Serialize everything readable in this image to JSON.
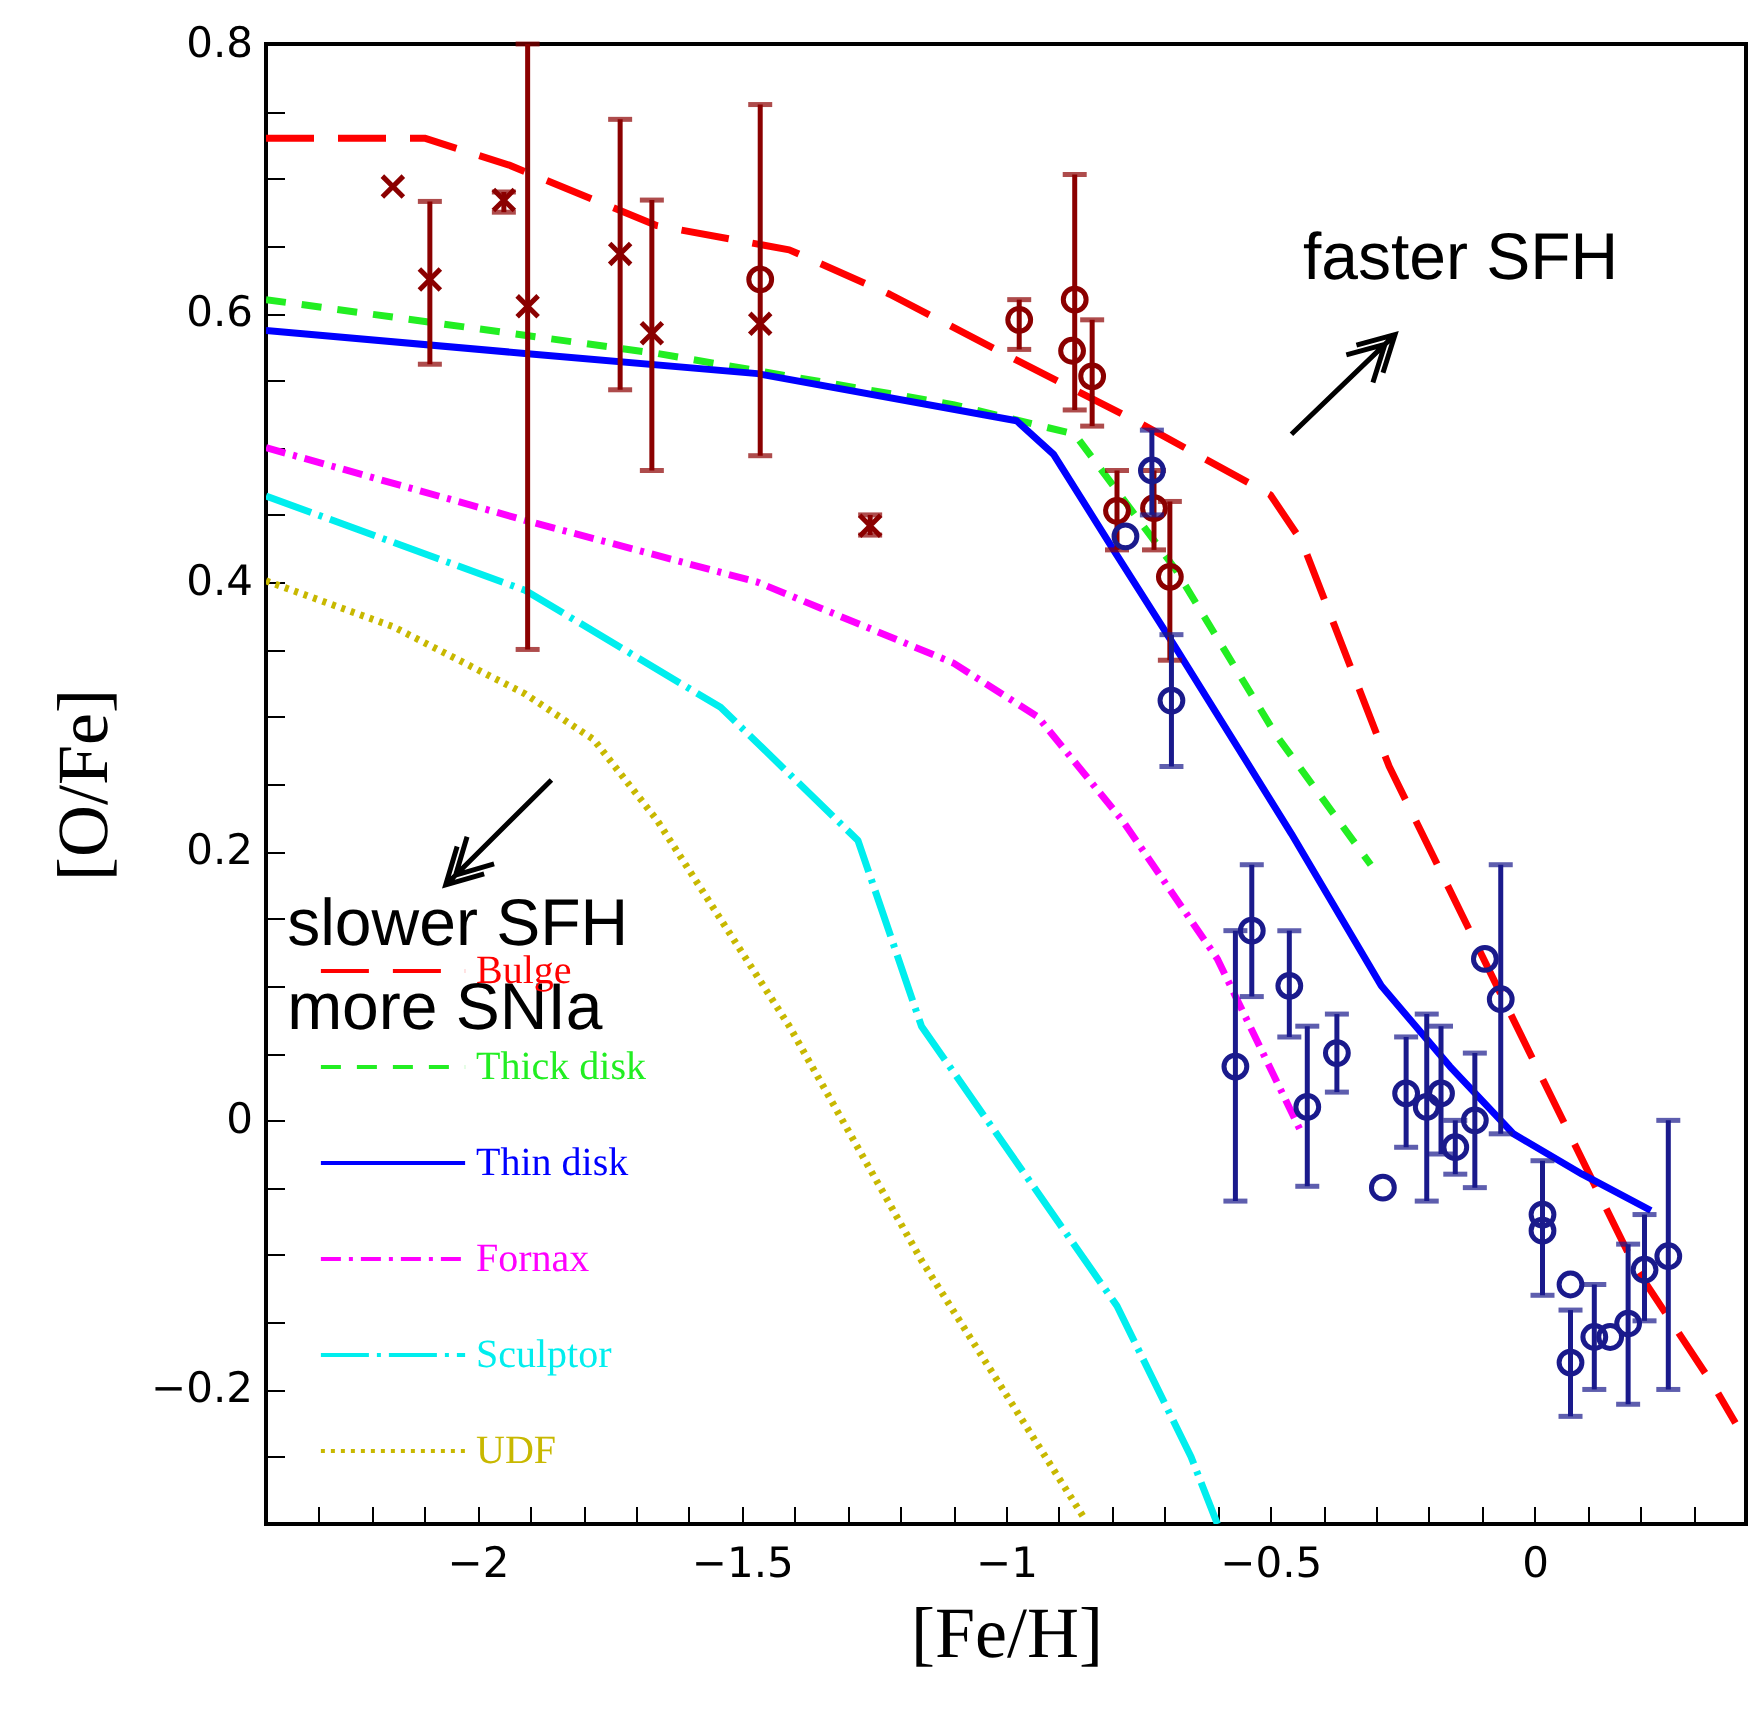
{
  "chart_data": {
    "type": "line",
    "xlabel": "[Fe/H]",
    "ylabel": "[O/Fe]",
    "xlim": [
      -2.4,
      0.4
    ],
    "ylim": [
      -0.3,
      0.8
    ],
    "xticks": [
      {
        "value": -2.3,
        "label": null
      },
      {
        "value": -2.2,
        "label": null
      },
      {
        "value": -2.1,
        "label": null
      },
      -2,
      {
        "value": -1.9,
        "label": null
      },
      {
        "value": -1.8,
        "label": null
      },
      {
        "value": -1.7,
        "label": null
      },
      {
        "value": -1.6,
        "label": null
      },
      -1.5,
      {
        "value": -1.4,
        "label": null
      },
      {
        "value": -1.3,
        "label": null
      },
      {
        "value": -1.2,
        "label": null
      },
      {
        "value": -1.1,
        "label": null
      },
      -1,
      {
        "value": -0.9,
        "label": null
      },
      {
        "value": -0.8,
        "label": null
      },
      {
        "value": -0.7,
        "label": null
      },
      {
        "value": -0.6,
        "label": null
      },
      -0.5,
      {
        "value": -0.4,
        "label": null
      },
      {
        "value": -0.3,
        "label": null
      },
      {
        "value": -0.2,
        "label": null
      },
      {
        "value": -0.1,
        "label": null
      },
      0,
      {
        "value": 0.1,
        "label": null
      },
      {
        "value": 0.2,
        "label": null
      },
      {
        "value": 0.3,
        "label": null
      }
    ],
    "yticks": [
      {
        "value": -0.25,
        "label": null
      },
      -0.2,
      {
        "value": -0.15,
        "label": null
      },
      {
        "value": -0.1,
        "label": null
      },
      {
        "value": -0.05,
        "label": null
      },
      0,
      {
        "value": 0.05,
        "label": null
      },
      {
        "value": 0.1,
        "label": null
      },
      {
        "value": 0.15,
        "label": null
      },
      0.2,
      {
        "value": 0.25,
        "label": null
      },
      {
        "value": 0.3,
        "label": null
      },
      {
        "value": 0.35,
        "label": null
      },
      0.4,
      {
        "value": 0.45,
        "label": null
      },
      {
        "value": 0.5,
        "label": null
      },
      {
        "value": 0.55,
        "label": null
      },
      0.6,
      {
        "value": 0.65,
        "label": null
      },
      {
        "value": 0.7,
        "label": null
      },
      {
        "value": 0.75,
        "label": null
      },
      0.8
    ],
    "grid": false,
    "legend": "bottom left",
    "annotations": [
      "faster SFH",
      "slower SFH\nmore SNIa"
    ],
    "series": [
      {
        "name": "Bulge",
        "color": "#ff0000",
        "line_style": "dashed",
        "x": [
          -2.4,
          -2.1,
          -1.94,
          -1.66,
          -1.41,
          -1.22,
          -0.98,
          -0.755,
          -0.5,
          -0.44,
          -0.275,
          -0.064,
          0.19,
          0.34,
          0.38
        ],
        "values": [
          0.73,
          0.73,
          0.71,
          0.665,
          0.647,
          0.614,
          0.565,
          0.52,
          0.465,
          0.43,
          0.263,
          0.094,
          -0.109,
          -0.198,
          -0.225
        ]
      },
      {
        "name": "Thick disk",
        "color": "#22ee22",
        "line_style": "dashed",
        "x": [
          -2.4,
          -1.66,
          -1.1,
          -0.87,
          -0.68,
          -0.49,
          -0.31
        ],
        "values": [
          0.61,
          0.57,
          0.532,
          0.51,
          0.41,
          0.287,
          0.19
        ]
      },
      {
        "name": "Thin disk",
        "color": "#0000ff",
        "line_style": "solid",
        "x": [
          -2.4,
          -1.91,
          -1.47,
          -0.98,
          -0.91,
          -0.79,
          -0.68,
          -0.46,
          -0.29,
          -0.16,
          -0.04,
          0.09,
          0.22
        ],
        "values": [
          0.587,
          0.57,
          0.555,
          0.52,
          0.495,
          0.42,
          0.352,
          0.213,
          0.1,
          0.04,
          -0.01,
          -0.04,
          -0.067
        ]
      },
      {
        "name": "Fornax",
        "color": "#ff00ff",
        "line_style": "dashdot",
        "x": [
          -2.4,
          -1.91,
          -1.47,
          -1.1,
          -0.94,
          -0.78,
          -0.6,
          -0.44
        ],
        "values": [
          0.5,
          0.446,
          0.4,
          0.34,
          0.3,
          0.223,
          0.12,
          -0.01
        ]
      },
      {
        "name": "Sculptor",
        "color": "#00eeee",
        "line_style": "longdashdot",
        "x": [
          -2.4,
          -1.91,
          -1.54,
          -1.28,
          -1.16,
          -0.79,
          -0.65,
          -0.6
        ],
        "values": [
          0.464,
          0.394,
          0.307,
          0.208,
          0.07,
          -0.138,
          -0.25,
          -0.3
        ]
      },
      {
        "name": "UDF",
        "color": "#c8b800",
        "line_style": "dotted",
        "x": [
          -2.4,
          -2.16,
          -1.91,
          -1.78,
          -1.66,
          -1.41,
          -1.16,
          -0.85
        ],
        "values": [
          0.401,
          0.367,
          0.317,
          0.283,
          0.223,
          0.07,
          -0.104,
          -0.297
        ]
      },
      {
        "type": "scatter",
        "marker": "cross",
        "color": "#8b0000",
        "x": [
          -2.16,
          -2.09,
          -1.95,
          -1.905,
          -1.73,
          -1.67,
          -1.465,
          -1.257
        ],
        "values": [
          0.694,
          0.625,
          0.684,
          0.605,
          0.644,
          0.585,
          0.592,
          0.442
        ],
        "errors": [
          null,
          [
            0.562,
            0.683
          ],
          [
            0.675,
            0.69
          ],
          [
            0.35,
            0.8
          ],
          [
            0.543,
            0.744
          ],
          [
            0.483,
            0.684
          ],
          [
            0.494,
            0.755
          ],
          [
            0.435,
            0.45
          ]
        ]
      },
      {
        "type": "scatter",
        "marker": "circle",
        "color": "#8b0000",
        "x": [
          -1.465,
          -0.975,
          -0.87,
          -0.875,
          -0.837,
          -0.79,
          -0.72,
          -0.69
        ],
        "values": [
          0.625,
          0.595,
          0.61,
          0.572,
          0.553,
          0.453,
          0.455,
          0.404
        ],
        "errors": [
          null,
          [
            0.573,
            0.61
          ],
          [
            0.528,
            0.703
          ],
          null,
          [
            0.516,
            0.595
          ],
          [
            0.424,
            0.483
          ],
          [
            0.424,
            0.483
          ],
          [
            0.342,
            0.46
          ]
        ]
      },
      {
        "type": "scatter",
        "marker": "circle",
        "color": "#1a1a8c",
        "x": [
          -0.724,
          -0.774,
          -0.687,
          -0.566,
          -0.535,
          -0.464,
          -0.43,
          -0.374,
          -0.287,
          -0.243,
          -0.204,
          -0.177,
          -0.15,
          -0.113,
          -0.094,
          -0.064,
          0.015,
          0.015,
          0.068,
          0.068,
          0.113,
          0.143,
          0.177,
          0.208,
          0.253
        ],
        "values": [
          0.483,
          0.434,
          0.312,
          0.04,
          0.141,
          0.1,
          0.01,
          0.05,
          -0.05,
          0.02,
          0.01,
          0.02,
          -0.02,
          0.0,
          0.12,
          0.09,
          -0.07,
          -0.082,
          -0.122,
          -0.18,
          -0.161,
          -0.161,
          -0.151,
          -0.111,
          -0.101
        ],
        "errors": [
          [
            0.45,
            0.513
          ],
          null,
          [
            0.263,
            0.361
          ],
          [
            -0.06,
            0.141
          ],
          [
            0.092,
            0.19
          ],
          [
            0.062,
            0.141
          ],
          [
            -0.049,
            0.07
          ],
          [
            0.021,
            0.079
          ],
          null,
          [
            -0.02,
            0.062
          ],
          [
            -0.06,
            0.079
          ],
          [
            -0.025,
            0.07
          ],
          [
            -0.04,
            0.0
          ],
          [
            -0.05,
            0.05
          ],
          null,
          [
            -0.01,
            0.19
          ],
          [
            -0.13,
            -0.03
          ],
          null,
          null,
          [
            -0.22,
            -0.141
          ],
          [
            -0.2,
            -0.122
          ],
          null,
          [
            -0.211,
            -0.092
          ],
          [
            -0.149,
            -0.07
          ],
          [
            -0.2,
            0.0
          ]
        ]
      }
    ]
  }
}
